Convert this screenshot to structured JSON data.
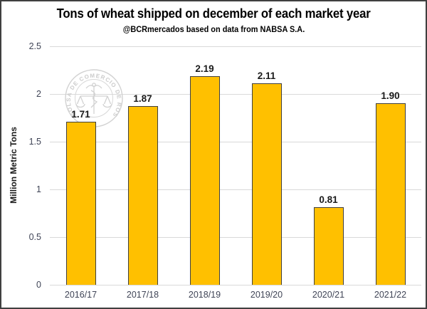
{
  "chart_data": {
    "type": "bar",
    "title": "Tons of wheat shipped on december of each market year",
    "subtitle": "@BCRmercados based on data from NABSA S.A.",
    "categories": [
      "2016/17",
      "2017/18",
      "2018/19",
      "2019/20",
      "2020/21",
      "2021/22"
    ],
    "values": [
      1.71,
      1.87,
      2.19,
      2.11,
      0.81,
      1.9
    ],
    "value_labels": [
      "1.71",
      "1.87",
      "2.19",
      "2.11",
      "0.81",
      "1.90"
    ],
    "xlabel": "",
    "ylabel": "Million Metric Tons",
    "ylim": [
      0,
      2.5
    ],
    "yticks": [
      0,
      0.5,
      1,
      1.5,
      2,
      2.5
    ],
    "ytick_labels": [
      "0",
      "0.5",
      "1",
      "1.5",
      "2",
      "2.5"
    ],
    "grid": "horizontal gridlines every 0.5, light gray",
    "legend": "none",
    "colors": {
      "bar_fill": "#FFC000",
      "bar_border": "#3F3F3F",
      "gridline": "#D9D9D9",
      "axis_text": "#3F4456",
      "label_text": "#1A1A1A",
      "watermark": "#D2D2D2"
    },
    "watermark": {
      "text": "BOLSA DE COMERCIO DE ROSARIO",
      "description": "light gray circular seal with caduceus and scales, upper-left of plot"
    }
  }
}
